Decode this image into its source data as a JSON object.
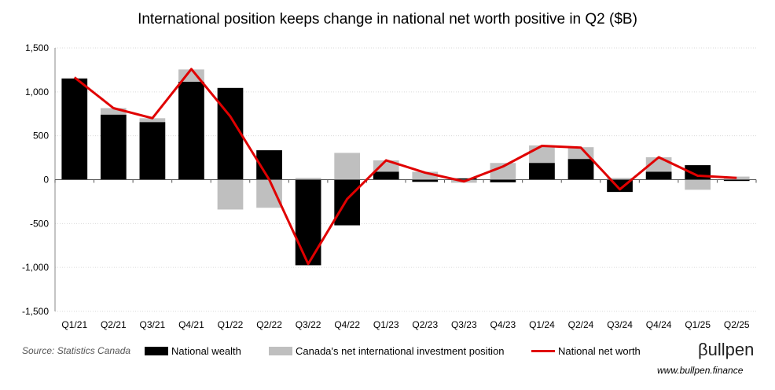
{
  "chart_data": {
    "type": "bar",
    "title": "International position keeps change in national net worth positive in Q2 ($B)",
    "categories": [
      "Q1/21",
      "Q2/21",
      "Q3/21",
      "Q4/21",
      "Q1/22",
      "Q2/22",
      "Q3/22",
      "Q4/22",
      "Q1/23",
      "Q2/23",
      "Q3/23",
      "Q4/23",
      "Q1/24",
      "Q2/24",
      "Q3/24",
      "Q4/24",
      "Q1/25",
      "Q2/25"
    ],
    "ylim": [
      -1500,
      1500
    ],
    "yticks": [
      "1,500",
      "1,000",
      "500",
      "0",
      "-500",
      "-1,000",
      "-1,500"
    ],
    "ytick_values": [
      1500,
      1000,
      500,
      0,
      -500,
      -1000,
      -1500
    ],
    "grid": true,
    "legend_position": "bottom",
    "series": [
      {
        "name": "National wealth",
        "kind": "bar",
        "color": "#000000",
        "values": [
          1150,
          740,
          655,
          1115,
          1045,
          335,
          -975,
          -520,
          90,
          -25,
          15,
          -30,
          190,
          235,
          -140,
          90,
          165,
          -15
        ]
      },
      {
        "name": "Canada's net international investment position",
        "kind": "bar",
        "color": "#bfbfbf",
        "values": [
          1160,
          815,
          700,
          1255,
          -340,
          -320,
          20,
          305,
          220,
          90,
          -35,
          190,
          390,
          370,
          20,
          255,
          -115,
          35
        ]
      },
      {
        "name": "National net worth",
        "kind": "line",
        "color": "#e00000",
        "values": [
          1165,
          815,
          700,
          1260,
          720,
          0,
          -960,
          -220,
          220,
          80,
          -20,
          150,
          385,
          365,
          -110,
          255,
          45,
          20
        ]
      }
    ]
  },
  "source": "Source: Statistics Canada",
  "brand": "βullpen",
  "website": "www.bullpen.finance"
}
